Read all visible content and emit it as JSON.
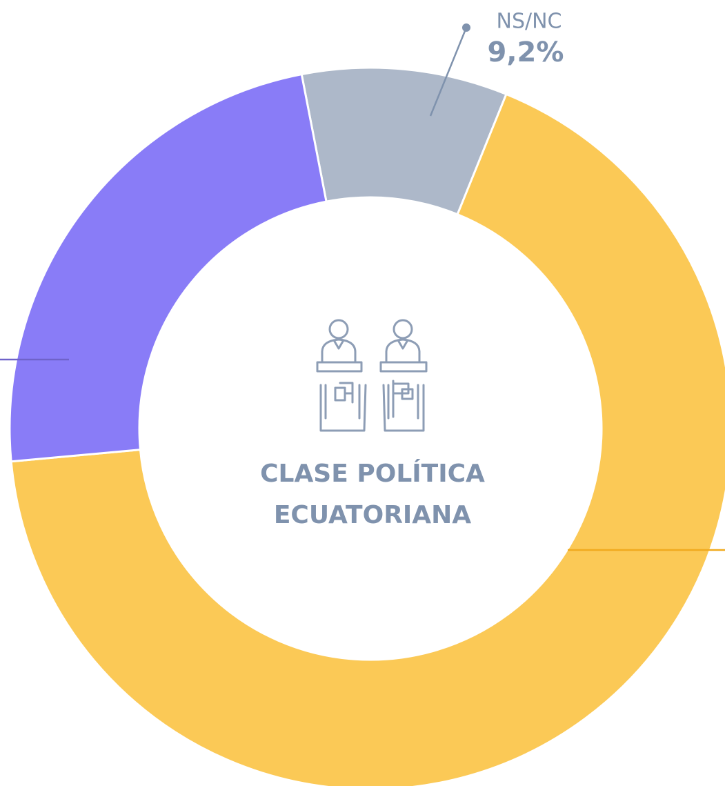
{
  "chart_data": {
    "type": "donut",
    "categories": [
      "NS/NC",
      null,
      null
    ],
    "values": [
      9.2,
      67.4,
      23.4
    ],
    "value_labels": [
      "9,2%",
      null,
      null
    ],
    "colors": [
      "#adb8c9",
      "#fbc956",
      "#897cf7"
    ],
    "center_label": [
      "CLASE POLÍTICA",
      "ECUATORIANA"
    ]
  }
}
